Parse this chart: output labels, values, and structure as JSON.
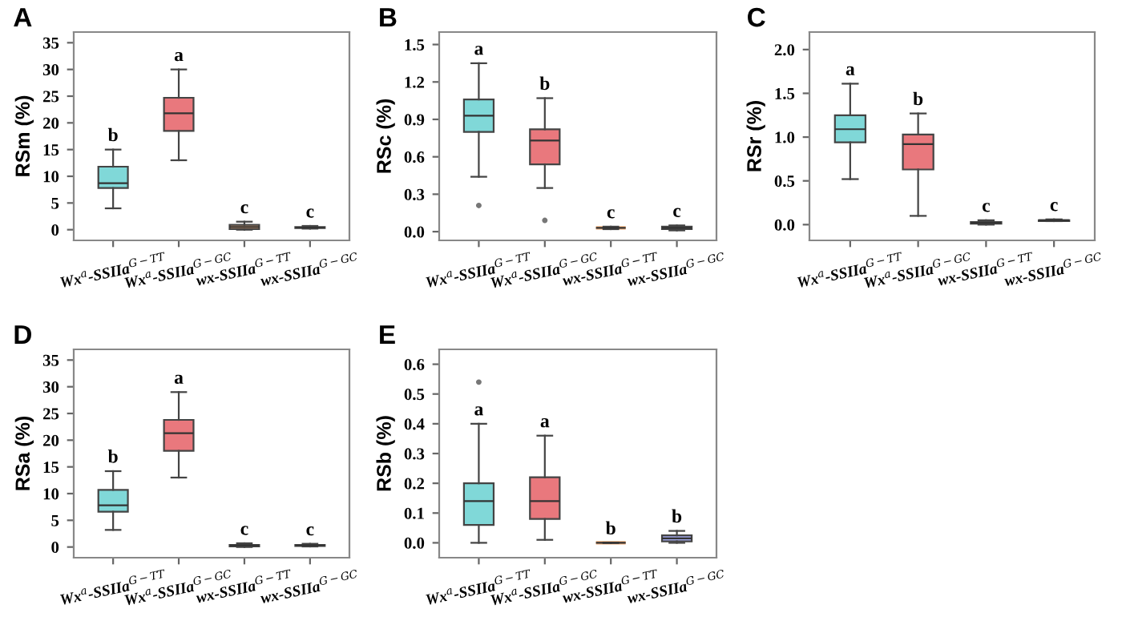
{
  "chart_data": [
    {
      "type": "box",
      "title": "A",
      "ylabel": "RSm (%)",
      "categories": [
        "Wx$^{a}$-SSIIa$^{G−TT}$",
        "Wx$^{a}$-SSIIa$^{G−GC}$",
        "wx-SSIIa$^{G−TT}$",
        "wx-SSIIa$^{G−GC}$"
      ],
      "colors": [
        "#80d8d8",
        "#e9787d",
        "#f3ae78",
        "#a0a6e6"
      ],
      "boxes": [
        {
          "low": 4,
          "q1": 7.8,
          "median": 8.7,
          "q3": 11.8,
          "high": 15
        },
        {
          "low": 13,
          "q1": 18.5,
          "median": 21.8,
          "q3": 24.7,
          "high": 30
        },
        {
          "low": 0,
          "q1": 0.1,
          "median": 0.5,
          "q3": 0.9,
          "high": 1.5
        },
        {
          "low": 0.2,
          "q1": 0.3,
          "median": 0.4,
          "q3": 0.5,
          "high": 0.7
        }
      ],
      "annotations": [
        {
          "text": "b",
          "x": "Wx$^{a}$-SSIIa$^{G−TT}$",
          "y": 15
        },
        {
          "text": "a",
          "x": "Wx$^{a}$-SSIIa$^{G−GC}$",
          "y": 30
        },
        {
          "text": "c",
          "x": "wx-SSIIa$^{G−TT}$",
          "y": 1.5
        },
        {
          "text": "c",
          "x": "wx-SSIIa$^{G−GC}$",
          "y": 0.7
        }
      ],
      "ylim": [
        -2,
        37
      ],
      "yticks": [
        0,
        5,
        10,
        15,
        20,
        25,
        30,
        35
      ],
      "grid": false
    },
    {
      "type": "box",
      "title": "B",
      "ylabel": "RSc (%)",
      "categories": [
        "Wx$^{a}$-SSIIa$^{G−TT}$",
        "Wx$^{a}$-SSIIa$^{G−GC}$",
        "wx-SSIIa$^{G−TT}$",
        "wx-SSIIa$^{G−GC}$"
      ],
      "colors": [
        "#80d8d8",
        "#e9787d",
        "#f3ae78",
        "#a0a6e6"
      ],
      "boxes": [
        {
          "low": 0.44,
          "q1": 0.8,
          "median": 0.93,
          "q3": 1.06,
          "high": 1.35,
          "outliers": [
            0.21
          ]
        },
        {
          "low": 0.35,
          "q1": 0.54,
          "median": 0.73,
          "q3": 0.82,
          "high": 1.07,
          "outliers": [
            0.09
          ]
        },
        {
          "low": 0.02,
          "q1": 0.03,
          "median": 0.03,
          "q3": 0.03,
          "high": 0.04
        },
        {
          "low": 0.01,
          "q1": 0.02,
          "median": 0.03,
          "q3": 0.04,
          "high": 0.05
        }
      ],
      "annotations": [
        {
          "text": "a",
          "x": "Wx$^{a}$-SSIIa$^{G−TT}$",
          "y": 1.35
        },
        {
          "text": "b",
          "x": "Wx$^{a}$-SSIIa$^{G−GC}$",
          "y": 1.07
        },
        {
          "text": "c",
          "x": "wx-SSIIa$^{G−TT}$",
          "y": 0.04
        },
        {
          "text": "c",
          "x": "wx-SSIIa$^{G−GC}$",
          "y": 0.05
        }
      ],
      "ylim": [
        -0.07,
        1.6
      ],
      "yticks": [
        {
          "value": 0,
          "label": "0.0"
        },
        0.3,
        0.6,
        0.9,
        1.2,
        1.5
      ],
      "grid": false
    },
    {
      "type": "box",
      "title": "C",
      "ylabel": "RSr (%)",
      "categories": [
        "Wx$^{a}$-SSIIa$^{G−TT}$",
        "Wx$^{a}$-SSIIa$^{G−GC}$",
        "wx-SSIIa$^{G−TT}$",
        "wx-SSIIa$^{G−GC}$"
      ],
      "colors": [
        "#80d8d8",
        "#e9787d",
        "#f3ae78",
        "#a0a6e6"
      ],
      "boxes": [
        {
          "low": 0.52,
          "q1": 0.94,
          "median": 1.09,
          "q3": 1.25,
          "high": 1.61
        },
        {
          "low": 0.1,
          "q1": 0.63,
          "median": 0.92,
          "q3": 1.03,
          "high": 1.27
        },
        {
          "low": 0,
          "q1": 0.01,
          "median": 0.02,
          "q3": 0.03,
          "high": 0.05
        },
        {
          "low": 0.04,
          "q1": 0.04,
          "median": 0.05,
          "q3": 0.05,
          "high": 0.06
        }
      ],
      "annotations": [
        {
          "text": "a",
          "x": "Wx$^{a}$-SSIIa$^{G−TT}$",
          "y": 1.61
        },
        {
          "text": "b",
          "x": "Wx$^{a}$-SSIIa$^{G−GC}$",
          "y": 1.27
        },
        {
          "text": "c",
          "x": "wx-SSIIa$^{G−TT}$",
          "y": 0.05
        },
        {
          "text": "c",
          "x": "wx-SSIIa$^{G−GC}$",
          "y": 0.06
        }
      ],
      "ylim": [
        -0.18,
        2.2
      ],
      "yticks": [
        {
          "value": 0,
          "label": "0.0"
        },
        0.5,
        {
          "value": 1,
          "label": "1.0"
        },
        1.5,
        {
          "value": 2,
          "label": "2.0"
        }
      ],
      "grid": false
    },
    {
      "type": "box",
      "title": "D",
      "ylabel": "RSa (%)",
      "categories": [
        "Wx$^{a}$-SSIIa$^{G−TT}$",
        "Wx$^{a}$-SSIIa$^{G−GC}$",
        "wx-SSIIa$^{G−TT}$",
        "wx-SSIIa$^{G−GC}$"
      ],
      "colors": [
        "#80d8d8",
        "#e9787d",
        "#f3ae78",
        "#a0a6e6"
      ],
      "boxes": [
        {
          "low": 3.2,
          "q1": 6.6,
          "median": 7.8,
          "q3": 10.7,
          "high": 14.2
        },
        {
          "low": 13,
          "q1": 18,
          "median": 21.3,
          "q3": 23.8,
          "high": 29
        },
        {
          "low": 0,
          "q1": 0.1,
          "median": 0.3,
          "q3": 0.4,
          "high": 0.7
        },
        {
          "low": 0.1,
          "q1": 0.2,
          "median": 0.3,
          "q3": 0.4,
          "high": 0.6
        }
      ],
      "annotations": [
        {
          "text": "b",
          "x": "Wx$^{a}$-SSIIa$^{G−TT}$",
          "y": 14.2
        },
        {
          "text": "a",
          "x": "Wx$^{a}$-SSIIa$^{G−GC}$",
          "y": 29
        },
        {
          "text": "c",
          "x": "wx-SSIIa$^{G−TT}$",
          "y": 0.7
        },
        {
          "text": "c",
          "x": "wx-SSIIa$^{G−GC}$",
          "y": 0.6
        }
      ],
      "ylim": [
        -2,
        37
      ],
      "yticks": [
        0,
        5,
        10,
        15,
        20,
        25,
        30,
        35
      ],
      "grid": false
    },
    {
      "type": "box",
      "title": "E",
      "ylabel": "RSb (%)",
      "categories": [
        "Wx$^{a}$-SSIIa$^{G−TT}$",
        "Wx$^{a}$-SSIIa$^{G−GC}$",
        "wx-SSIIa$^{G−TT}$",
        "wx-SSIIa$^{G−GC}$"
      ],
      "colors": [
        "#80d8d8",
        "#e9787d",
        "#f3ae78",
        "#a0a6e6"
      ],
      "boxes": [
        {
          "low": 0,
          "q1": 0.06,
          "median": 0.14,
          "q3": 0.2,
          "high": 0.4,
          "outliers": [
            0.54
          ]
        },
        {
          "low": 0.01,
          "q1": 0.08,
          "median": 0.14,
          "q3": 0.22,
          "high": 0.36
        },
        {
          "low": 0,
          "q1": 0,
          "median": 0,
          "q3": 0,
          "high": 0
        },
        {
          "low": 0,
          "q1": 0.005,
          "median": 0.015,
          "q3": 0.025,
          "high": 0.04
        }
      ],
      "annotations": [
        {
          "text": "a",
          "x": "Wx$^{a}$-SSIIa$^{G−TT}$",
          "y": 0.4
        },
        {
          "text": "a",
          "x": "Wx$^{a}$-SSIIa$^{G−GC}$",
          "y": 0.36
        },
        {
          "text": "b",
          "x": "wx-SSIIa$^{G−TT}$",
          "y": 0
        },
        {
          "text": "b",
          "x": "wx-SSIIa$^{G−GC}$",
          "y": 0.04
        }
      ],
      "ylim": [
        -0.05,
        0.65
      ],
      "yticks": [
        {
          "value": 0,
          "label": "0.0"
        },
        0.1,
        0.2,
        0.3,
        0.4,
        0.5,
        0.6
      ],
      "grid": false
    }
  ]
}
